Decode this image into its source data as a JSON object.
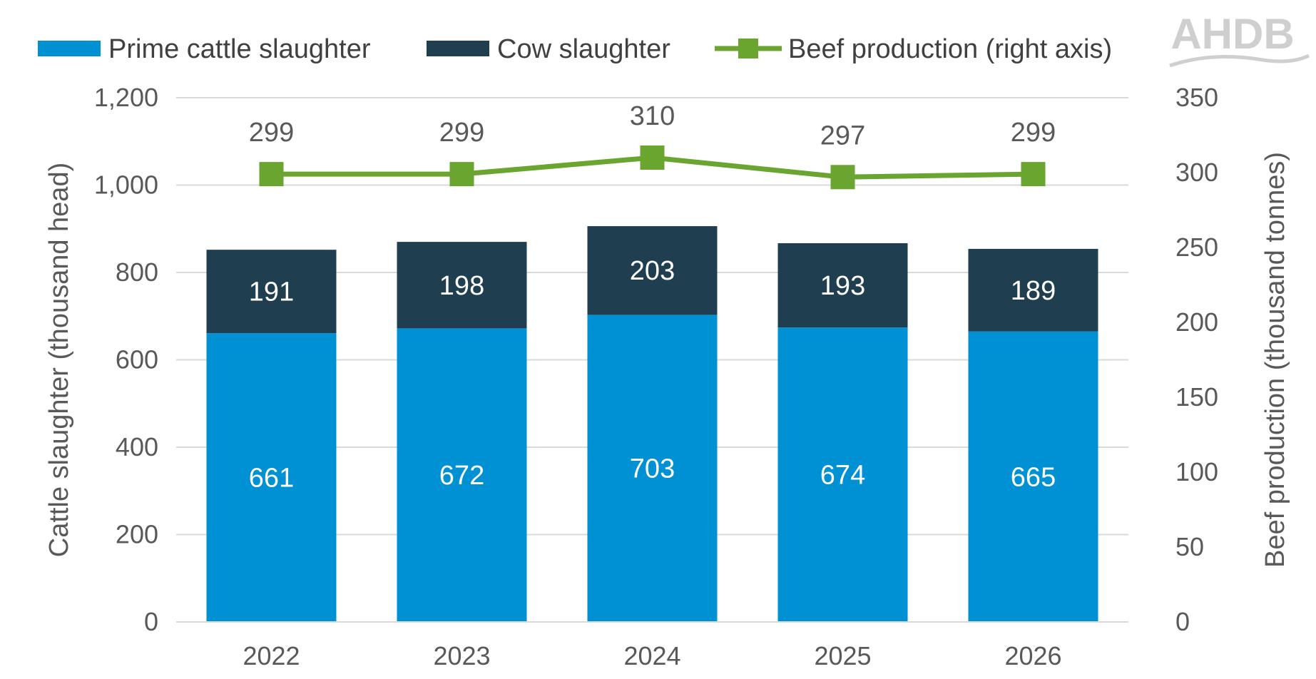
{
  "logo": {
    "text": "AHDB"
  },
  "chart_data": {
    "type": "bar",
    "stacked": true,
    "categories": [
      "2022",
      "2023",
      "2024",
      "2025",
      "2026"
    ],
    "series": [
      {
        "name": "Prime cattle slaughter",
        "kind": "bar",
        "axis": "left",
        "color": "#0090d4",
        "label_color": "#ffffff",
        "values": [
          661,
          672,
          703,
          674,
          665
        ]
      },
      {
        "name": "Cow slaughter",
        "kind": "bar",
        "axis": "left",
        "color": "#1f3f50",
        "label_color": "#ffffff",
        "values": [
          191,
          198,
          203,
          193,
          189
        ]
      },
      {
        "name": "Beef production (right axis)",
        "kind": "line",
        "marker": "square",
        "axis": "right",
        "color": "#6aa52f",
        "label_color": "#595959",
        "values": [
          299,
          299,
          310,
          297,
          299
        ]
      }
    ],
    "ylabel": "Cattle slaughter (thousand head)",
    "y2label": "Beef production (thousand tonnes)",
    "ylim": [
      0,
      1200
    ],
    "yticks": [
      0,
      200,
      400,
      600,
      800,
      1000,
      1200
    ],
    "ytick_labels": [
      "0",
      "200",
      "400",
      "600",
      "800",
      "1,000",
      "1,200"
    ],
    "y2lim": [
      0,
      350
    ],
    "y2ticks": [
      0,
      50,
      100,
      150,
      200,
      250,
      300,
      350
    ],
    "y2tick_labels": [
      "0",
      "50",
      "100",
      "150",
      "200",
      "250",
      "300",
      "350"
    ],
    "grid": true,
    "legend_position": "top",
    "colors": {
      "gridline": "#d9d9d9",
      "axis_text": "#595959",
      "legend_text": "#404040",
      "logo": "#cfcfcf"
    }
  }
}
